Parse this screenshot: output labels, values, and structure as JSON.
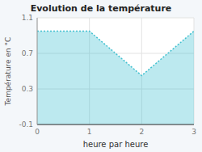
{
  "chart_data": {
    "type": "area",
    "title": "Evolution de la température",
    "x_label": "heure par heure",
    "y_label": "Température en °C",
    "x": [
      0,
      1,
      2,
      3
    ],
    "values": [
      0.95,
      0.95,
      0.45,
      0.95
    ],
    "xlim": [
      0,
      3
    ],
    "ylim": [
      -0.1,
      1.1
    ],
    "xticks": [
      0,
      1,
      2,
      3
    ],
    "yticks": [
      -0.1,
      0.3,
      0.7,
      1.1
    ],
    "color": "#40c0d0",
    "line_style": "dotted",
    "grid": true
  }
}
